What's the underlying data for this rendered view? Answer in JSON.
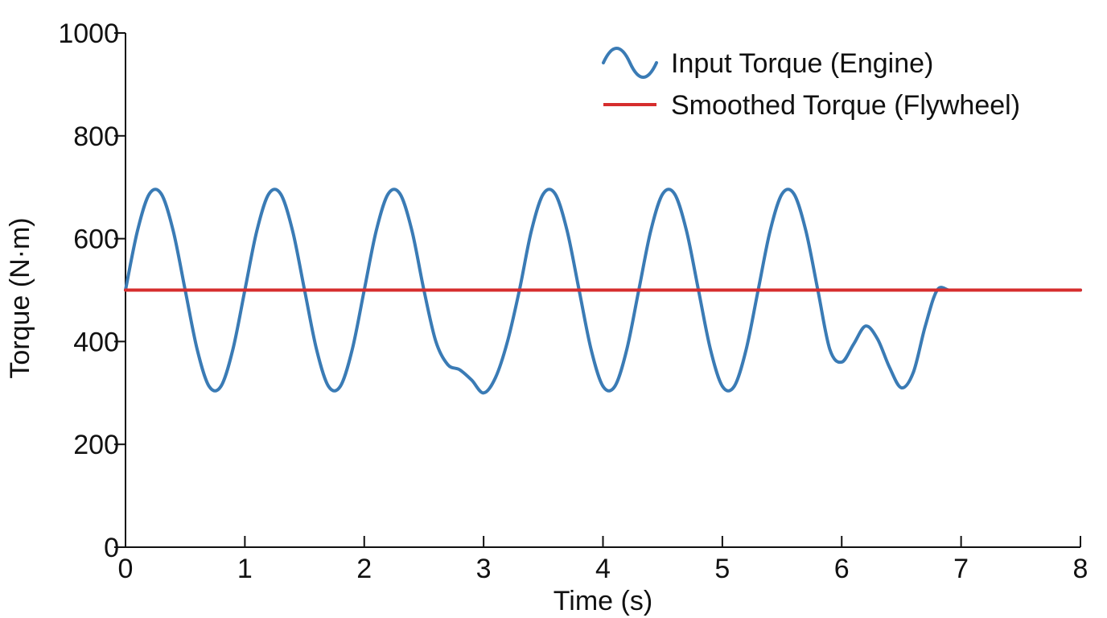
{
  "chart_data": {
    "type": "line",
    "xlabel": "Time (s)",
    "ylabel": "Torque (N·m)",
    "xlim": [
      0,
      8
    ],
    "ylim": [
      0,
      1000
    ],
    "xticks": [
      0,
      1,
      2,
      3,
      4,
      5,
      6,
      7,
      8
    ],
    "yticks": [
      0,
      200,
      400,
      600,
      800,
      1000
    ],
    "grid": false,
    "legend_position": "top-right",
    "series": [
      {
        "name": "Input Torque (Engine)",
        "color": "#3a7bb5",
        "legend_marker": "wave",
        "x": [
          0,
          0.1,
          0.2,
          0.3,
          0.4,
          0.5,
          0.6,
          0.7,
          0.8,
          0.9,
          1.0,
          1.1,
          1.2,
          1.3,
          1.4,
          1.5,
          1.6,
          1.7,
          1.8,
          1.9,
          2.0,
          2.1,
          2.2,
          2.3,
          2.4,
          2.5,
          2.6,
          2.7,
          2.8,
          2.9,
          3.0,
          3.1,
          3.2,
          3.3,
          3.4,
          3.5,
          3.6,
          3.7,
          3.8,
          3.9,
          4.0,
          4.1,
          4.2,
          4.3,
          4.4,
          4.5,
          4.6,
          4.7,
          4.8,
          4.9,
          5.0,
          5.1,
          5.2,
          5.3,
          5.4,
          5.5,
          5.6,
          5.7,
          5.8,
          5.9,
          6.0,
          6.1,
          6.2,
          6.3,
          6.4,
          6.5,
          6.6,
          6.7,
          6.8,
          6.9,
          7.0,
          7.1,
          7.2,
          7.3,
          7.4,
          7.5,
          7.6,
          7.7,
          7.8,
          7.9,
          8.0
        ],
        "values": [
          500,
          615,
          687,
          687,
          615,
          500,
          385,
          313,
          313,
          385,
          500,
          615,
          687,
          687,
          615,
          500,
          385,
          313,
          313,
          385,
          500,
          615,
          687,
          687,
          615,
          500,
          400,
          355,
          345,
          325,
          300,
          330,
          400,
          500,
          615,
          687,
          687,
          615,
          500,
          385,
          313,
          313,
          385,
          500,
          615,
          687,
          687,
          615,
          500,
          385,
          313,
          313,
          385,
          500,
          615,
          687,
          687,
          615,
          500,
          385,
          360,
          395,
          430,
          405,
          350,
          310,
          340,
          430,
          500,
          500,
          500,
          500,
          500,
          500,
          500,
          500,
          500,
          500,
          500,
          500,
          500
        ]
      },
      {
        "name": "Smoothed Torque (Flywheel)",
        "color": "#d62d2d",
        "legend_marker": "line",
        "x": [
          0,
          8
        ],
        "values": [
          500,
          500
        ]
      }
    ]
  }
}
